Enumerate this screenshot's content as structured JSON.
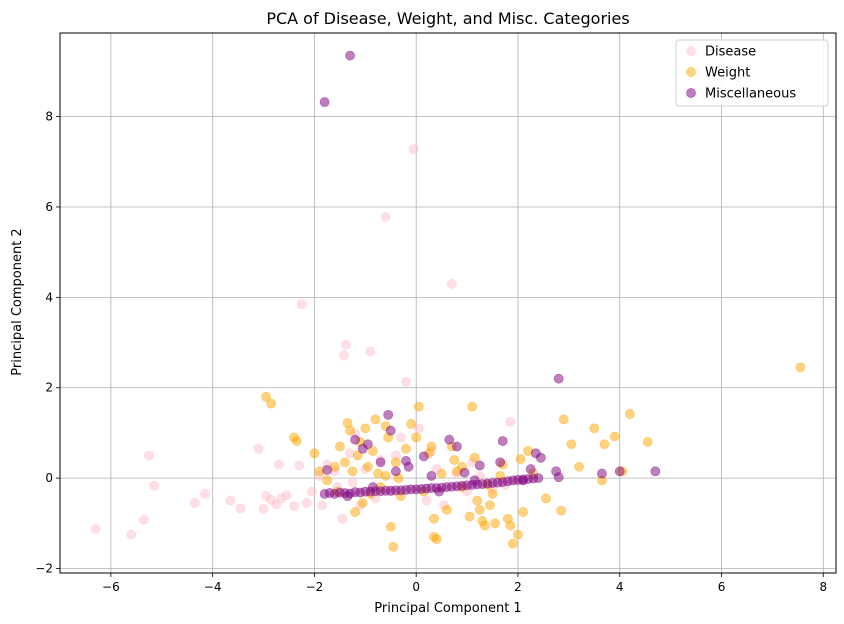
{
  "chart_data": {
    "type": "scatter",
    "title": "PCA of Disease, Weight, and Misc. Categories",
    "xlabel": "Principal Component 1",
    "ylabel": "Principal Component 2",
    "xlim": [
      -7,
      8.25
    ],
    "ylim": [
      -2.1,
      9.85
    ],
    "xticks": [
      -6,
      -4,
      -2,
      0,
      2,
      4,
      6,
      8
    ],
    "yticks": [
      -2,
      0,
      2,
      4,
      6,
      8
    ],
    "xtick_labels": [
      "−6",
      "−4",
      "−2",
      "0",
      "2",
      "4",
      "6",
      "8"
    ],
    "ytick_labels": [
      "−2",
      "0",
      "2",
      "4",
      "6",
      "8"
    ],
    "grid": true,
    "legend_position": "top-right",
    "series": [
      {
        "name": "Disease",
        "color": "#ffc0cb",
        "points": [
          [
            -6.3,
            -1.13
          ],
          [
            -5.6,
            -1.25
          ],
          [
            -5.35,
            -0.92
          ],
          [
            -5.25,
            0.5
          ],
          [
            -5.15,
            -0.17
          ],
          [
            -4.35,
            -0.55
          ],
          [
            -4.15,
            -0.35
          ],
          [
            -3.65,
            -0.5
          ],
          [
            -3.45,
            -0.67
          ],
          [
            -3.1,
            0.65
          ],
          [
            -3.0,
            -0.68
          ],
          [
            -2.95,
            -0.4
          ],
          [
            -2.85,
            -0.48
          ],
          [
            -2.75,
            -0.58
          ],
          [
            -2.7,
            0.3
          ],
          [
            -2.65,
            -0.45
          ],
          [
            -2.55,
            -0.38
          ],
          [
            -2.4,
            -0.62
          ],
          [
            -2.3,
            0.28
          ],
          [
            -2.25,
            3.85
          ],
          [
            -2.15,
            -0.55
          ],
          [
            -2.05,
            -0.3
          ],
          [
            -1.9,
            0.05
          ],
          [
            -1.85,
            -0.6
          ],
          [
            -1.75,
            0.3
          ],
          [
            -1.55,
            -0.2
          ],
          [
            -1.45,
            -0.9
          ],
          [
            -1.42,
            2.72
          ],
          [
            -1.38,
            2.95
          ],
          [
            -1.3,
            0.55
          ],
          [
            -1.25,
            -0.1
          ],
          [
            -1.2,
            0.98
          ],
          [
            -1.1,
            -0.6
          ],
          [
            -1.0,
            0.2
          ],
          [
            -0.9,
            2.8
          ],
          [
            -0.8,
            -0.45
          ],
          [
            -0.7,
            0.4
          ],
          [
            -0.6,
            5.78
          ],
          [
            -0.5,
            -0.3
          ],
          [
            -0.3,
            0.9
          ],
          [
            -0.2,
            2.13
          ],
          [
            -0.05,
            7.28
          ],
          [
            0.05,
            1.1
          ],
          [
            0.2,
            -0.5
          ],
          [
            0.4,
            0.2
          ],
          [
            0.55,
            -0.6
          ],
          [
            0.7,
            4.3
          ],
          [
            0.8,
            0.1
          ],
          [
            1.0,
            -0.3
          ],
          [
            1.25,
            0.05
          ],
          [
            1.5,
            -0.25
          ],
          [
            1.75,
            -0.15
          ],
          [
            1.85,
            1.25
          ],
          [
            1.95,
            -0.05
          ],
          [
            -0.4,
            0.5
          ],
          [
            0.3,
            0.6
          ],
          [
            1.1,
            0.35
          ],
          [
            -1.6,
            0.15
          ]
        ]
      },
      {
        "name": "Weight",
        "color": "#ffa500",
        "points": [
          [
            -2.95,
            1.8
          ],
          [
            -2.85,
            1.65
          ],
          [
            -2.4,
            0.9
          ],
          [
            -2.35,
            0.82
          ],
          [
            -2.0,
            0.55
          ],
          [
            -1.9,
            0.15
          ],
          [
            -1.75,
            -0.05
          ],
          [
            -1.6,
            0.25
          ],
          [
            -1.5,
            0.7
          ],
          [
            -1.4,
            0.35
          ],
          [
            -1.35,
            1.22
          ],
          [
            -1.3,
            1.05
          ],
          [
            -1.25,
            0.15
          ],
          [
            -1.2,
            -0.75
          ],
          [
            -1.15,
            0.5
          ],
          [
            -1.1,
            0.8
          ],
          [
            -1.05,
            -0.55
          ],
          [
            -1.0,
            1.1
          ],
          [
            -0.95,
            0.25
          ],
          [
            -0.9,
            -0.35
          ],
          [
            -0.85,
            0.6
          ],
          [
            -0.8,
            1.3
          ],
          [
            -0.75,
            0.1
          ],
          [
            -0.7,
            -0.2
          ],
          [
            -0.6,
            1.15
          ],
          [
            -0.55,
            0.9
          ],
          [
            -0.5,
            -1.08
          ],
          [
            -0.45,
            -1.52
          ],
          [
            -0.4,
            0.35
          ],
          [
            -0.35,
            0.0
          ],
          [
            -0.2,
            0.65
          ],
          [
            -0.1,
            1.2
          ],
          [
            0.0,
            0.9
          ],
          [
            0.05,
            1.58
          ],
          [
            0.15,
            -0.3
          ],
          [
            0.25,
            0.55
          ],
          [
            0.3,
            0.7
          ],
          [
            0.35,
            -0.9
          ],
          [
            0.35,
            -1.3
          ],
          [
            0.4,
            -1.35
          ],
          [
            0.5,
            0.1
          ],
          [
            0.6,
            -0.7
          ],
          [
            0.7,
            0.7
          ],
          [
            0.75,
            0.4
          ],
          [
            0.8,
            0.15
          ],
          [
            0.9,
            -0.2
          ],
          [
            1.05,
            -0.85
          ],
          [
            1.1,
            1.58
          ],
          [
            1.15,
            0.45
          ],
          [
            1.2,
            -0.5
          ],
          [
            1.25,
            -0.7
          ],
          [
            1.3,
            -0.95
          ],
          [
            1.35,
            -1.05
          ],
          [
            1.45,
            -0.6
          ],
          [
            1.5,
            -0.35
          ],
          [
            1.55,
            -1.0
          ],
          [
            1.65,
            0.05
          ],
          [
            1.8,
            -0.9
          ],
          [
            1.85,
            -1.05
          ],
          [
            1.9,
            -1.45
          ],
          [
            2.0,
            -1.25
          ],
          [
            2.05,
            0.42
          ],
          [
            2.1,
            -0.75
          ],
          [
            2.2,
            0.6
          ],
          [
            2.3,
            0.1
          ],
          [
            2.55,
            -0.45
          ],
          [
            2.85,
            -0.72
          ],
          [
            2.9,
            1.3
          ],
          [
            3.05,
            0.75
          ],
          [
            3.2,
            0.25
          ],
          [
            3.5,
            1.1
          ],
          [
            3.65,
            -0.05
          ],
          [
            3.7,
            0.75
          ],
          [
            3.9,
            0.92
          ],
          [
            4.05,
            0.15
          ],
          [
            4.2,
            1.42
          ],
          [
            4.55,
            0.8
          ],
          [
            7.55,
            2.45
          ],
          [
            -1.55,
            -0.3
          ],
          [
            -0.3,
            -0.4
          ],
          [
            0.9,
            0.25
          ],
          [
            1.4,
            -0.15
          ],
          [
            -0.6,
            0.05
          ],
          [
            1.7,
            0.3
          ]
        ]
      },
      {
        "name": "Miscellaneous",
        "color": "#800080",
        "points": [
          [
            -1.8,
            8.32
          ],
          [
            -1.3,
            9.35
          ],
          [
            -1.8,
            -0.35
          ],
          [
            -1.7,
            -0.33
          ],
          [
            -1.6,
            -0.35
          ],
          [
            -1.5,
            -0.32
          ],
          [
            -1.4,
            -0.33
          ],
          [
            -1.3,
            -0.34
          ],
          [
            -1.2,
            -0.31
          ],
          [
            -1.1,
            -0.32
          ],
          [
            -1.0,
            -0.3
          ],
          [
            -0.9,
            -0.3
          ],
          [
            -0.8,
            -0.29
          ],
          [
            -0.7,
            -0.29
          ],
          [
            -0.6,
            -0.28
          ],
          [
            -0.5,
            -0.28
          ],
          [
            -0.4,
            -0.27
          ],
          [
            -0.3,
            -0.27
          ],
          [
            -0.2,
            -0.26
          ],
          [
            -0.1,
            -0.25
          ],
          [
            0.0,
            -0.25
          ],
          [
            0.1,
            -0.24
          ],
          [
            0.2,
            -0.23
          ],
          [
            0.3,
            -0.22
          ],
          [
            0.4,
            -0.22
          ],
          [
            0.5,
            -0.21
          ],
          [
            0.6,
            -0.2
          ],
          [
            0.7,
            -0.19
          ],
          [
            0.8,
            -0.18
          ],
          [
            0.9,
            -0.17
          ],
          [
            1.0,
            -0.16
          ],
          [
            1.1,
            -0.15
          ],
          [
            1.2,
            -0.14
          ],
          [
            1.3,
            -0.13
          ],
          [
            1.4,
            -0.12
          ],
          [
            1.5,
            -0.11
          ],
          [
            1.6,
            -0.1
          ],
          [
            1.7,
            -0.09
          ],
          [
            1.8,
            -0.07
          ],
          [
            1.9,
            -0.05
          ],
          [
            2.0,
            -0.04
          ],
          [
            2.1,
            -0.03
          ],
          [
            2.2,
            -0.02
          ],
          [
            2.3,
            -0.01
          ],
          [
            2.4,
            0.0
          ],
          [
            -1.75,
            0.18
          ],
          [
            -1.2,
            0.85
          ],
          [
            -1.05,
            0.65
          ],
          [
            -0.95,
            0.75
          ],
          [
            -0.7,
            0.35
          ],
          [
            -0.55,
            1.4
          ],
          [
            -0.5,
            1.05
          ],
          [
            -0.4,
            0.15
          ],
          [
            -0.2,
            0.38
          ],
          [
            -0.15,
            0.25
          ],
          [
            0.15,
            0.48
          ],
          [
            0.3,
            0.05
          ],
          [
            0.65,
            0.85
          ],
          [
            0.8,
            0.7
          ],
          [
            0.95,
            0.12
          ],
          [
            1.25,
            0.28
          ],
          [
            1.65,
            0.35
          ],
          [
            1.7,
            0.82
          ],
          [
            2.25,
            0.2
          ],
          [
            2.35,
            0.55
          ],
          [
            2.45,
            0.45
          ],
          [
            2.75,
            0.15
          ],
          [
            2.8,
            2.2
          ],
          [
            3.65,
            0.1
          ],
          [
            4.0,
            0.15
          ],
          [
            4.7,
            0.15
          ],
          [
            -1.35,
            -0.4
          ],
          [
            -0.85,
            -0.2
          ],
          [
            0.45,
            -0.3
          ],
          [
            1.15,
            -0.05
          ],
          [
            2.1,
            -0.05
          ],
          [
            2.8,
            0.02
          ]
        ]
      }
    ]
  }
}
